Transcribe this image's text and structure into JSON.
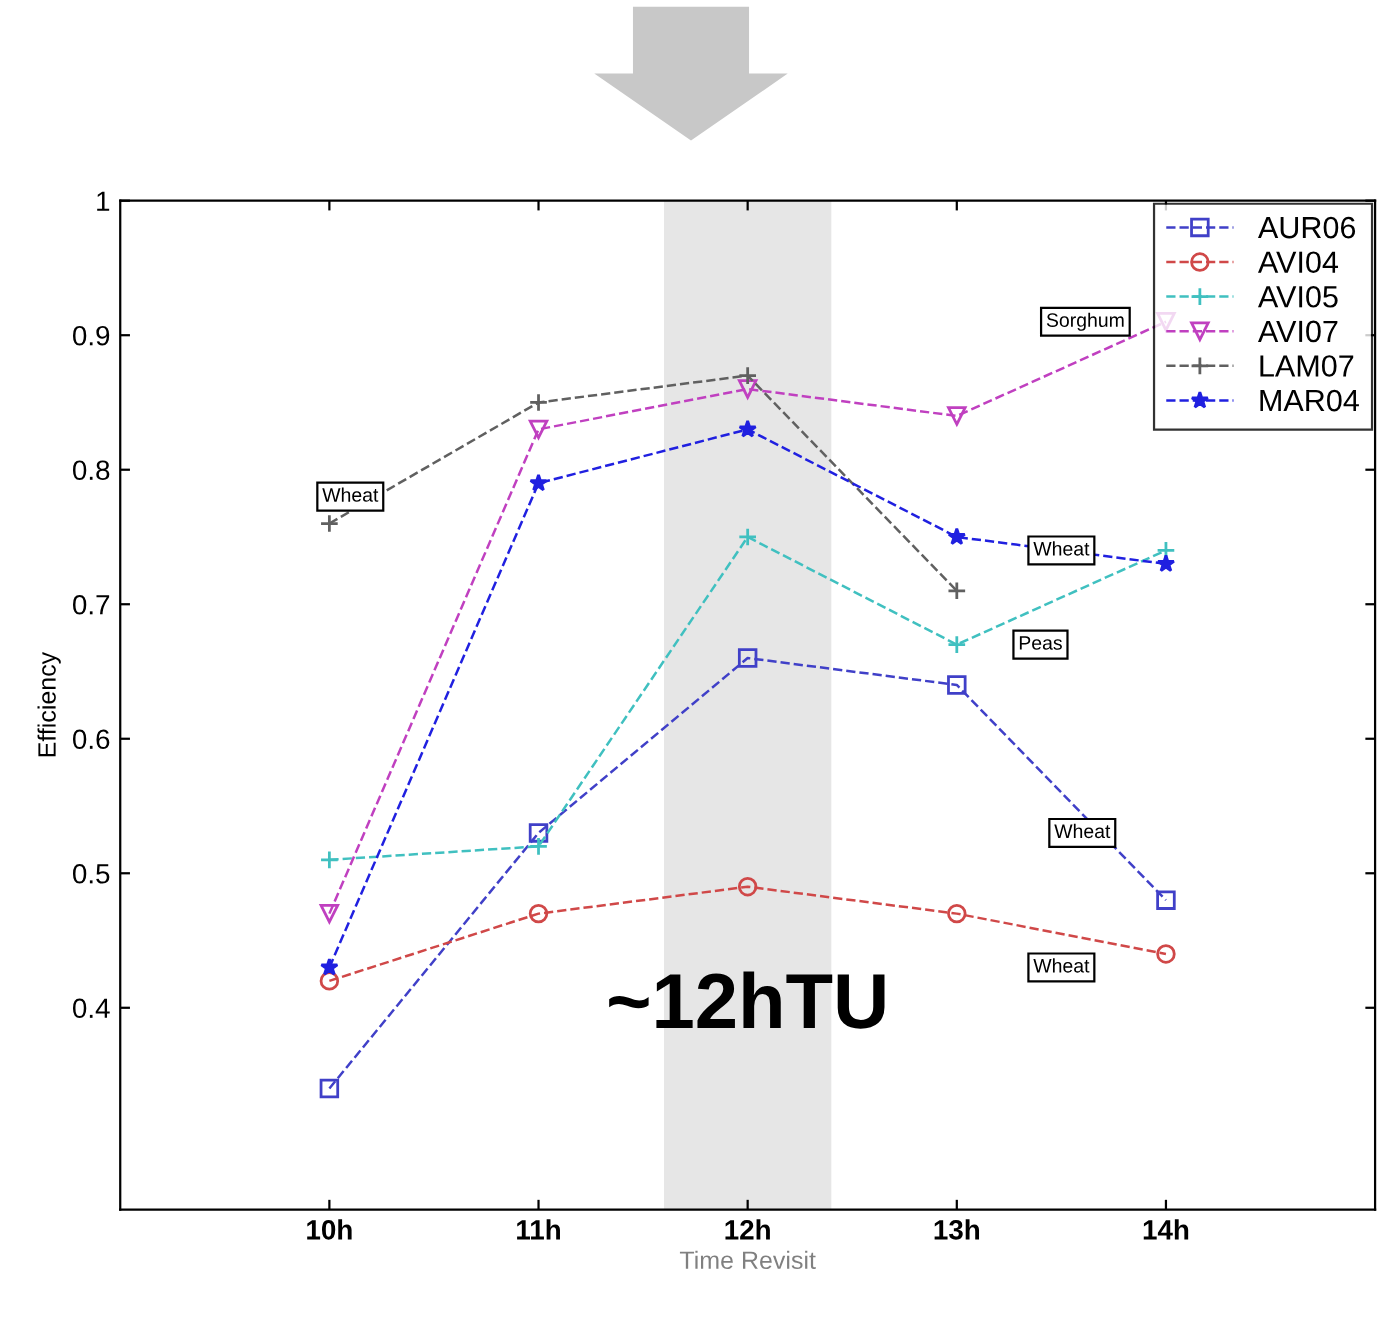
{
  "chart_data": {
    "type": "line",
    "xlabel": "Time Revisit",
    "ylabel": "Efficiency",
    "x": [
      10,
      11,
      12,
      13,
      14
    ],
    "xlim": [
      9,
      15
    ],
    "xticks": [
      {
        "value": 10,
        "label": "10h"
      },
      {
        "value": 11,
        "label": "11h"
      },
      {
        "value": 12,
        "label": "12h"
      },
      {
        "value": 13,
        "label": "13h"
      },
      {
        "value": 14,
        "label": "14h"
      }
    ],
    "ylim": [
      0.25,
      1
    ],
    "yticks": [
      0.4,
      0.5,
      0.6,
      0.7,
      0.8,
      0.9,
      {
        "value": 1,
        "label": "1"
      }
    ],
    "series": [
      {
        "name": "AUR06",
        "color": "#4040c8",
        "marker": "square",
        "values": [
          0.34,
          0.53,
          0.66,
          0.64,
          0.48
        ]
      },
      {
        "name": "AVI04",
        "color": "#d04848",
        "marker": "circle",
        "values": [
          0.42,
          0.47,
          0.49,
          0.47,
          0.44
        ]
      },
      {
        "name": "AVI05",
        "color": "#40c0c0",
        "marker": "cross",
        "values": [
          0.51,
          0.52,
          0.75,
          0.67,
          0.74
        ]
      },
      {
        "name": "AVI07",
        "color": "#c040c0",
        "marker": "triangle",
        "values": [
          0.47,
          0.83,
          0.86,
          0.84,
          0.91
        ]
      },
      {
        "name": "LAM07",
        "color": "#606060",
        "marker": "cross",
        "values": [
          0.76,
          0.85,
          0.87,
          0.71,
          null
        ]
      },
      {
        "name": "MAR04",
        "color": "#2020e0",
        "marker": "star",
        "values": [
          0.43,
          0.79,
          0.83,
          0.75,
          0.73
        ]
      }
    ],
    "line_style": "dashed",
    "grid": false,
    "legend": "top right",
    "bands": [
      {
        "axis": "x",
        "from": 11.6,
        "to": 12.4,
        "label": "~12hTU",
        "color": "#e6e6e6"
      }
    ],
    "annotations": [
      {
        "text": "Wheat",
        "x": 10.1,
        "y": 0.78
      },
      {
        "text": "Sorghum",
        "x": 14,
        "y": 0.91
      },
      {
        "text": "Wheat",
        "x": 13.5,
        "y": 0.74
      },
      {
        "text": "Peas",
        "x": 13.4,
        "y": 0.67
      },
      {
        "text": "Wheat",
        "x": 13.6,
        "y": 0.53
      },
      {
        "text": "Wheat",
        "x": 13.5,
        "y": 0.43
      }
    ]
  }
}
